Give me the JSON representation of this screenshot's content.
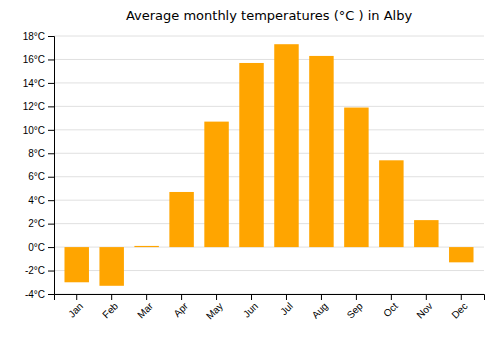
{
  "chart_data": {
    "type": "bar",
    "title": "Average monthly temperatures (°C ) in Alby",
    "categories": [
      "Jan",
      "Feb",
      "Mar",
      "Apr",
      "May",
      "Jun",
      "Jul",
      "Aug",
      "Sep",
      "Oct",
      "Nov",
      "Dec"
    ],
    "values": [
      -3.0,
      -3.3,
      0.1,
      4.7,
      10.7,
      15.7,
      17.3,
      16.3,
      11.9,
      7.4,
      2.3,
      -1.3
    ],
    "color": "#FFA500",
    "ylim": [
      -4,
      18
    ],
    "yticks": [
      {
        "value": -4,
        "label": "-4°C"
      },
      {
        "value": -2,
        "label": "-2°C"
      },
      {
        "value": 0,
        "label": "0°C"
      },
      {
        "value": 2,
        "label": "2°C"
      },
      {
        "value": 4,
        "label": "4°C"
      },
      {
        "value": 6,
        "label": "6°C"
      },
      {
        "value": 8,
        "label": "8°C"
      },
      {
        "value": 10,
        "label": "10°C"
      },
      {
        "value": 12,
        "label": "12°C"
      },
      {
        "value": 14,
        "label": "14°C"
      },
      {
        "value": 16,
        "label": "16°C"
      },
      {
        "value": 18,
        "label": "18°C"
      }
    ],
    "grid": true
  }
}
